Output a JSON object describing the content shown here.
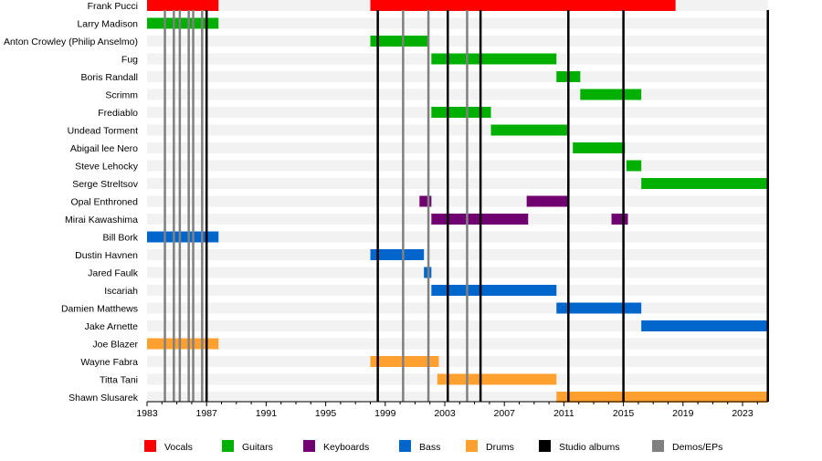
{
  "chart_data": {
    "type": "timeline",
    "xlim": [
      1983,
      2024.7
    ],
    "x_ticks": [
      "1983",
      "1987",
      "1991",
      "1995",
      "1999",
      "2003",
      "2007",
      "2011",
      "2015",
      "2019",
      "2023"
    ],
    "grid": false,
    "legend_position": "bottom",
    "roles": {
      "vocals": {
        "label": "Vocals",
        "color": "#ff0000"
      },
      "guitars": {
        "label": "Guitars",
        "color": "#00b000"
      },
      "keyboards": {
        "label": "Keyboards",
        "color": "#700070"
      },
      "bass": {
        "label": "Bass",
        "color": "#0066cc"
      },
      "drums": {
        "label": "Drums",
        "color": "#ffa030"
      },
      "studio": {
        "label": "Studio albums",
        "color": "#000000"
      },
      "demos": {
        "label": "Demos/EPs",
        "color": "#808080"
      }
    },
    "legend_order": [
      "vocals",
      "guitars",
      "keyboards",
      "bass",
      "drums",
      "studio",
      "demos"
    ],
    "members": [
      {
        "name": "Frank Pucci",
        "spans": [
          {
            "role": "vocals",
            "start": 1983,
            "end": 1987.8
          },
          {
            "role": "vocals",
            "start": 1998.0,
            "end": 2018.5
          }
        ]
      },
      {
        "name": "Larry Madison",
        "spans": [
          {
            "role": "guitars",
            "start": 1983,
            "end": 1987.8
          }
        ]
      },
      {
        "name": "Anton Crowley (Philip Anselmo)",
        "spans": [
          {
            "role": "guitars",
            "start": 1998.0,
            "end": 2001.9
          }
        ]
      },
      {
        "name": "Fug",
        "spans": [
          {
            "role": "guitars",
            "start": 2002.1,
            "end": 2010.5
          }
        ]
      },
      {
        "name": "Boris Randall",
        "spans": [
          {
            "role": "guitars",
            "start": 2010.5,
            "end": 2012.1
          }
        ]
      },
      {
        "name": "Scrimm",
        "spans": [
          {
            "role": "guitars",
            "start": 2012.1,
            "end": 2016.2
          }
        ]
      },
      {
        "name": "Frediablo",
        "spans": [
          {
            "role": "guitars",
            "start": 2002.1,
            "end": 2006.1
          }
        ]
      },
      {
        "name": "Undead Torment",
        "spans": [
          {
            "role": "guitars",
            "start": 2006.1,
            "end": 2011.3
          }
        ]
      },
      {
        "name": "Abigail lee Nero",
        "spans": [
          {
            "role": "guitars",
            "start": 2011.6,
            "end": 2015.1
          }
        ]
      },
      {
        "name": "Steve Lehocky",
        "spans": [
          {
            "role": "guitars",
            "start": 2015.2,
            "end": 2016.2
          }
        ]
      },
      {
        "name": "Serge Streltsov",
        "spans": [
          {
            "role": "guitars",
            "start": 2016.2,
            "end": 2024.7
          }
        ]
      },
      {
        "name": "Opal Enthroned",
        "spans": [
          {
            "role": "keyboards",
            "start": 2001.3,
            "end": 2002.1
          },
          {
            "role": "keyboards",
            "start": 2008.5,
            "end": 2011.3
          }
        ]
      },
      {
        "name": "Mirai Kawashima",
        "spans": [
          {
            "role": "keyboards",
            "start": 2002.1,
            "end": 2008.6
          },
          {
            "role": "keyboards",
            "start": 2014.2,
            "end": 2015.3
          }
        ]
      },
      {
        "name": "Bill Bork",
        "spans": [
          {
            "role": "bass",
            "start": 1983,
            "end": 1987.8
          }
        ]
      },
      {
        "name": "Dustin Havnen",
        "spans": [
          {
            "role": "bass",
            "start": 1998.0,
            "end": 2001.6
          }
        ]
      },
      {
        "name": "Jared Faulk",
        "spans": [
          {
            "role": "bass",
            "start": 2001.6,
            "end": 2002.1
          }
        ]
      },
      {
        "name": "Iscariah",
        "spans": [
          {
            "role": "bass",
            "start": 2002.1,
            "end": 2010.5
          }
        ]
      },
      {
        "name": "Damien Matthews",
        "spans": [
          {
            "role": "bass",
            "start": 2010.5,
            "end": 2016.2
          }
        ]
      },
      {
        "name": "Jake Arnette",
        "spans": [
          {
            "role": "bass",
            "start": 2016.2,
            "end": 2024.7
          }
        ]
      },
      {
        "name": "Joe Blazer",
        "spans": [
          {
            "role": "drums",
            "start": 1983,
            "end": 1987.8
          }
        ]
      },
      {
        "name": "Wayne Fabra",
        "spans": [
          {
            "role": "drums",
            "start": 1998.0,
            "end": 2002.6
          }
        ]
      },
      {
        "name": "Titta Tani",
        "spans": [
          {
            "role": "drums",
            "start": 2002.5,
            "end": 2010.5
          }
        ]
      },
      {
        "name": "Shawn Slusarek",
        "spans": [
          {
            "role": "drums",
            "start": 2010.5,
            "end": 2024.7
          }
        ]
      }
    ],
    "studio_albums": [
      1987.0,
      1998.5,
      2003.2,
      2005.4,
      2011.3,
      2015.0,
      2024.7
    ],
    "demos_eps": [
      1984.2,
      1984.8,
      1985.2,
      1985.8,
      1986.1,
      1986.7,
      2000.2,
      2001.9,
      2004.5
    ]
  }
}
